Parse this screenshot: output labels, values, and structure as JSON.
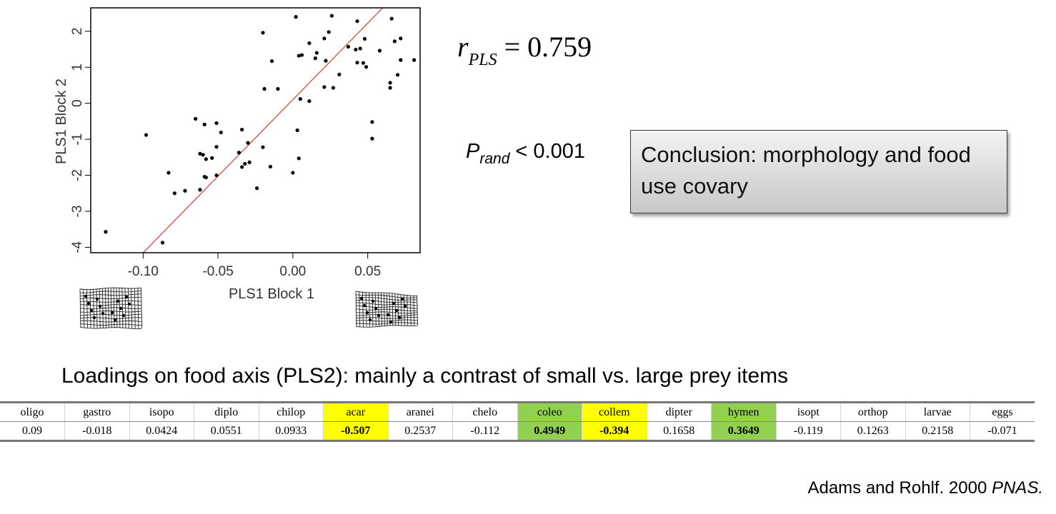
{
  "chart_data": {
    "type": "scatter",
    "xlabel": "PLS1 Block 1",
    "ylabel": "PLS1 Block 2",
    "xlim": [
      -0.135,
      0.085
    ],
    "ylim": [
      -4.15,
      2.65
    ],
    "xticks": [
      -0.1,
      -0.05,
      0.0,
      0.05
    ],
    "xtick_labels": [
      "-0.10",
      "-0.05",
      "0.00",
      "0.05"
    ],
    "yticks": [
      -4,
      -3,
      -2,
      -1,
      0,
      1,
      2
    ],
    "ytick_labels": [
      "-4",
      "-3",
      "-2",
      "-1",
      "0",
      "1",
      "2"
    ],
    "fit_line": {
      "x": [
        -0.1,
        0.06
      ],
      "y": [
        -4.15,
        2.65
      ],
      "color": "#d9534f"
    },
    "point_color": "#000000",
    "points": [
      [
        0.002,
        2.4
      ],
      [
        0.026,
        2.43
      ],
      [
        0.043,
        2.28
      ],
      [
        0.066,
        2.35
      ],
      [
        -0.02,
        1.96
      ],
      [
        0.024,
        1.98
      ],
      [
        0.021,
        1.8
      ],
      [
        0.048,
        1.79
      ],
      [
        0.072,
        1.8
      ],
      [
        0.068,
        1.72
      ],
      [
        0.037,
        1.57
      ],
      [
        0.045,
        1.52
      ],
      [
        0.058,
        1.46
      ],
      [
        0.042,
        1.49
      ],
      [
        0.011,
        1.67
      ],
      [
        0.016,
        1.4
      ],
      [
        0.006,
        1.34
      ],
      [
        0.004,
        1.32
      ],
      [
        0.015,
        1.25
      ],
      [
        0.022,
        1.18
      ],
      [
        0.043,
        1.13
      ],
      [
        0.047,
        1.12
      ],
      [
        0.081,
        1.2
      ],
      [
        0.072,
        1.2
      ],
      [
        0.049,
        1.01
      ],
      [
        0.031,
        0.8
      ],
      [
        0.07,
        0.79
      ],
      [
        0.065,
        0.57
      ],
      [
        0.065,
        0.43
      ],
      [
        0.021,
        0.45
      ],
      [
        0.027,
        0.43
      ],
      [
        -0.019,
        0.4
      ],
      [
        -0.01,
        0.4
      ],
      [
        0.005,
        0.12
      ],
      [
        0.011,
        0.06
      ],
      [
        -0.014,
        1.17
      ],
      [
        0.053,
        -0.52
      ],
      [
        0.053,
        -0.98
      ],
      [
        -0.065,
        -0.43
      ],
      [
        -0.059,
        -0.59
      ],
      [
        -0.051,
        -0.55
      ],
      [
        -0.034,
        -0.73
      ],
      [
        -0.048,
        -0.81
      ],
      [
        -0.098,
        -0.88
      ],
      [
        0.003,
        -0.75
      ],
      [
        -0.03,
        -1.1
      ],
      [
        -0.036,
        -1.37
      ],
      [
        -0.051,
        -1.21
      ],
      [
        -0.06,
        -1.43
      ],
      [
        -0.062,
        -1.4
      ],
      [
        -0.054,
        -1.52
      ],
      [
        -0.02,
        -1.22
      ],
      [
        -0.058,
        -1.55
      ],
      [
        0.004,
        -1.53
      ],
      [
        -0.032,
        -1.68
      ],
      [
        -0.034,
        -1.77
      ],
      [
        -0.015,
        -1.76
      ],
      [
        -0.029,
        -1.64
      ],
      [
        -0.083,
        -1.93
      ],
      [
        0.0,
        -1.93
      ],
      [
        -0.051,
        -2.0
      ],
      [
        -0.059,
        -2.04
      ],
      [
        -0.058,
        -2.06
      ],
      [
        -0.024,
        -2.36
      ],
      [
        -0.062,
        -2.4
      ],
      [
        -0.079,
        -2.5
      ],
      [
        -0.072,
        -2.43
      ],
      [
        -0.125,
        -3.57
      ],
      [
        -0.087,
        -3.87
      ]
    ]
  },
  "stats": {
    "r_symbol": "r",
    "r_sub": "PLS",
    "r_rest": " = 0.759",
    "p_symbol": "P",
    "p_sub": "rand",
    "p_rest": " < 0.001"
  },
  "conclusion": "Conclusion: morphology and food use covary",
  "loadings": {
    "heading": "Loadings on food axis (PLS2): mainly a contrast of small vs. large prey items",
    "columns": [
      "oligo",
      "gastro",
      "isopo",
      "diplo",
      "chilop",
      "acar",
      "aranei",
      "chelo",
      "coleo",
      "collem",
      "dipter",
      "hymen",
      "isopt",
      "orthop",
      "larvae",
      "eggs"
    ],
    "values": [
      "0.09",
      "-0.018",
      "0.0424",
      "0.0551",
      "0.0933",
      "-0.507",
      "0.2537",
      "-0.112",
      "0.4949",
      "-0.394",
      "0.1658",
      "0.3649",
      "-0.119",
      "0.1263",
      "0.2158",
      "-0.071"
    ],
    "highlight": [
      "",
      "",
      "",
      "",
      "",
      "yellow",
      "",
      "",
      "green",
      "yellow",
      "",
      "green",
      "",
      "",
      "",
      ""
    ],
    "highlight_colors": {
      "yellow": "#ffff00",
      "green": "#92d050"
    }
  },
  "citation": {
    "text": "Adams and Rohlf. 2000 ",
    "journal": "PNAS."
  }
}
